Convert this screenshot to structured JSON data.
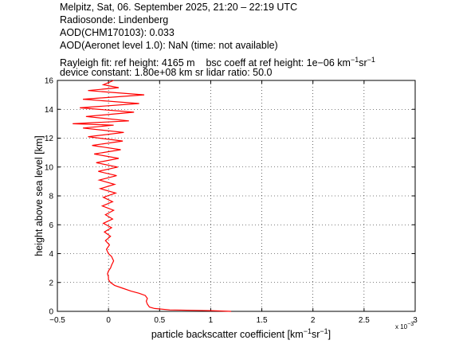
{
  "header": {
    "line1": "Melpitz, Sat, 06. September 2025, 21:20 – 22:19 UTC",
    "line2": "Radiosonde: Lindenberg",
    "line3": "AOD(CHM170103): 0.033",
    "line4": "AOD(Aeronet level 1.0): NaN   (time: not available)",
    "line5_a": "Rayleigh fit:     ref height: 4165 m",
    "line5_b": "bsc coeff at ref height: 1e−06 km",
    "line5_b_sup1": "−1",
    "line5_b_mid": "sr",
    "line5_b_sup2": "−1",
    "line6": "device constant: 1.80e+08 km sr     lidar ratio: 50.0"
  },
  "chart_data": {
    "type": "line",
    "xlabel_main": "particle backscatter coefficient [km",
    "xlabel_sup1": "−1",
    "xlabel_mid": "sr",
    "xlabel_sup2": "−1",
    "xlabel_end": "]",
    "ylabel": "height above sea level [km]",
    "x_multiplier": "x 10",
    "x_multiplier_exp": "−3",
    "xlim": [
      -0.5,
      3
    ],
    "ylim": [
      0,
      16
    ],
    "xticks": [
      "−0.5",
      "0",
      "0.5",
      "1",
      "1.5",
      "2",
      "2.5",
      "3"
    ],
    "xtick_values": [
      -0.5,
      0,
      0.5,
      1,
      1.5,
      2,
      2.5,
      3
    ],
    "yticks": [
      "0",
      "2",
      "4",
      "6",
      "8",
      "10",
      "12",
      "14",
      "16"
    ],
    "ytick_values": [
      0,
      2,
      4,
      6,
      8,
      10,
      12,
      14,
      16
    ],
    "grid": true,
    "series": [
      {
        "color": "#ff0000",
        "points": [
          [
            1.2,
            0.0
          ],
          [
            1.0,
            0.05
          ],
          [
            0.6,
            0.1
          ],
          [
            0.45,
            0.2
          ],
          [
            0.4,
            0.3
          ],
          [
            0.38,
            0.5
          ],
          [
            0.37,
            0.7
          ],
          [
            0.38,
            0.9
          ],
          [
            0.36,
            1.1
          ],
          [
            0.3,
            1.25
          ],
          [
            0.22,
            1.4
          ],
          [
            0.14,
            1.6
          ],
          [
            0.06,
            1.8
          ],
          [
            0.02,
            2.0
          ],
          [
            0.0,
            2.2
          ],
          [
            0.0,
            2.4
          ],
          [
            -0.01,
            2.6
          ],
          [
            0.0,
            2.8
          ],
          [
            0.02,
            3.0
          ],
          [
            0.03,
            3.2
          ],
          [
            0.05,
            3.5
          ],
          [
            0.03,
            3.8
          ],
          [
            0.0,
            4.0
          ],
          [
            -0.02,
            4.3
          ],
          [
            0.01,
            4.6
          ],
          [
            -0.03,
            4.9
          ],
          [
            0.02,
            5.2
          ],
          [
            -0.04,
            5.5
          ],
          [
            0.03,
            5.8
          ],
          [
            -0.05,
            6.1
          ],
          [
            0.04,
            6.4
          ],
          [
            -0.03,
            6.7
          ],
          [
            0.05,
            7.0
          ],
          [
            -0.06,
            7.3
          ],
          [
            0.04,
            7.6
          ],
          [
            -0.05,
            7.9
          ],
          [
            0.07,
            8.2
          ],
          [
            -0.08,
            8.5
          ],
          [
            0.06,
            8.8
          ],
          [
            -0.09,
            9.1
          ],
          [
            0.08,
            9.4
          ],
          [
            -0.1,
            9.7
          ],
          [
            0.09,
            10.0
          ],
          [
            -0.12,
            10.3
          ],
          [
            0.1,
            10.6
          ],
          [
            -0.14,
            10.9
          ],
          [
            0.12,
            11.2
          ],
          [
            -0.16,
            11.5
          ],
          [
            0.14,
            11.8
          ],
          [
            -0.2,
            12.1
          ],
          [
            0.15,
            12.4
          ],
          [
            -0.25,
            12.7
          ],
          [
            0.05,
            12.9
          ],
          [
            -0.35,
            13.0
          ],
          [
            0.2,
            13.2
          ],
          [
            -0.22,
            13.5
          ],
          [
            0.25,
            13.8
          ],
          [
            -0.28,
            14.1
          ],
          [
            0.3,
            14.4
          ],
          [
            -0.25,
            14.7
          ],
          [
            0.35,
            15.0
          ],
          [
            -0.2,
            15.3
          ],
          [
            0.1,
            15.5
          ],
          [
            -0.05,
            15.7
          ],
          [
            0.05,
            16.0
          ]
        ]
      }
    ]
  }
}
